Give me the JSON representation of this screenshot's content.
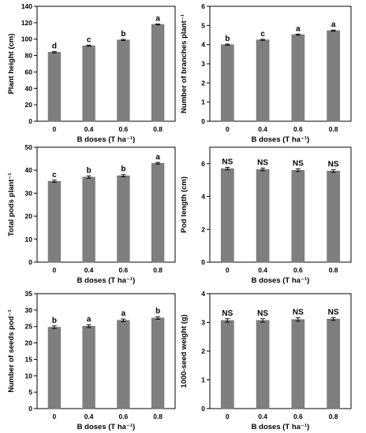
{
  "chart_data": [
    {
      "type": "bar",
      "categories": [
        "0",
        "0.4",
        "0.6",
        "0.8"
      ],
      "values": [
        84,
        92,
        99,
        118
      ],
      "errors": [
        0.8,
        0.7,
        0.8,
        0.6
      ],
      "significance": [
        "d",
        "c",
        "b",
        "a"
      ],
      "ylabel": "Plant height (cm)",
      "xlabel": "B doses (T ha⁻¹)",
      "ylim": [
        0,
        140
      ],
      "yticks": [
        "0",
        "20",
        "40",
        "60",
        "80",
        "100",
        "120",
        "140"
      ],
      "bar_color": "#7f7f7f"
    },
    {
      "type": "bar",
      "categories": [
        "0",
        "0.4",
        "0.6",
        "0.8"
      ],
      "values": [
        4.0,
        4.25,
        4.52,
        4.73
      ],
      "errors": [
        0.03,
        0.03,
        0.03,
        0.03
      ],
      "significance": [
        "b",
        "c",
        "a",
        "a"
      ],
      "ylabel": "Number of branches plant⁻¹",
      "xlabel": "B doses (T ha⁻¹)",
      "ylim": [
        0,
        6
      ],
      "yticks": [
        "0",
        "1",
        "2",
        "3",
        "4",
        "5",
        "6"
      ],
      "bar_color": "#7f7f7f"
    },
    {
      "type": "bar",
      "categories": [
        "0",
        "0.4",
        "0.6",
        "0.8"
      ],
      "values": [
        35.2,
        37.0,
        37.6,
        43.0
      ],
      "errors": [
        0.5,
        0.5,
        0.5,
        0.4
      ],
      "significance": [
        "c",
        "b",
        "b",
        "a"
      ],
      "ylabel": "Total pods plant⁻¹",
      "xlabel": "B doses (T ha⁻¹)",
      "ylim": [
        0,
        50
      ],
      "yticks": [
        "0",
        "10",
        "20",
        "30",
        "40",
        "50"
      ],
      "bar_color": "#7f7f7f"
    },
    {
      "type": "bar",
      "categories": [
        "0",
        "0.4",
        "0.6",
        "0.8"
      ],
      "values": [
        5.7,
        5.65,
        5.6,
        5.55
      ],
      "errors": [
        0.08,
        0.08,
        0.08,
        0.08
      ],
      "significance": [
        "NS",
        "NS",
        "NS",
        "NS"
      ],
      "ylabel": "Pod length (cm)",
      "xlabel": "B doses (T ha⁻¹)",
      "ylim": [
        0,
        7
      ],
      "yticks": [
        "0",
        "2",
        "4",
        "6"
      ],
      "ytick_values": [
        0,
        2,
        4,
        6
      ],
      "bar_color": "#7f7f7f"
    },
    {
      "type": "bar",
      "categories": [
        "0",
        "0.4",
        "0.6",
        "0.8"
      ],
      "values": [
        24.8,
        25.1,
        26.9,
        27.6
      ],
      "errors": [
        0.4,
        0.4,
        0.4,
        0.4
      ],
      "significance": [
        "b",
        "a",
        "a",
        "b"
      ],
      "ylabel": "Number of seeds pod⁻¹",
      "xlabel": "B doses (T ha⁻¹)",
      "ylim": [
        0,
        35
      ],
      "yticks": [
        "0",
        "5",
        "10",
        "15",
        "20",
        "25",
        "30",
        "35"
      ],
      "bar_color": "#7f7f7f"
    },
    {
      "type": "bar",
      "categories": [
        "0",
        "0.4",
        "0.6",
        "0.8"
      ],
      "values": [
        3.07,
        3.07,
        3.1,
        3.12
      ],
      "errors": [
        0.06,
        0.06,
        0.06,
        0.05
      ],
      "significance": [
        "NS",
        "NS",
        "NS",
        "NS"
      ],
      "ylabel": "1000-seed weight (g)",
      "xlabel": "B doses (T ha⁻¹)",
      "ylim": [
        0,
        4
      ],
      "yticks": [
        "0",
        "1",
        "2",
        "3",
        "4"
      ],
      "bar_color": "#7f7f7f"
    }
  ]
}
